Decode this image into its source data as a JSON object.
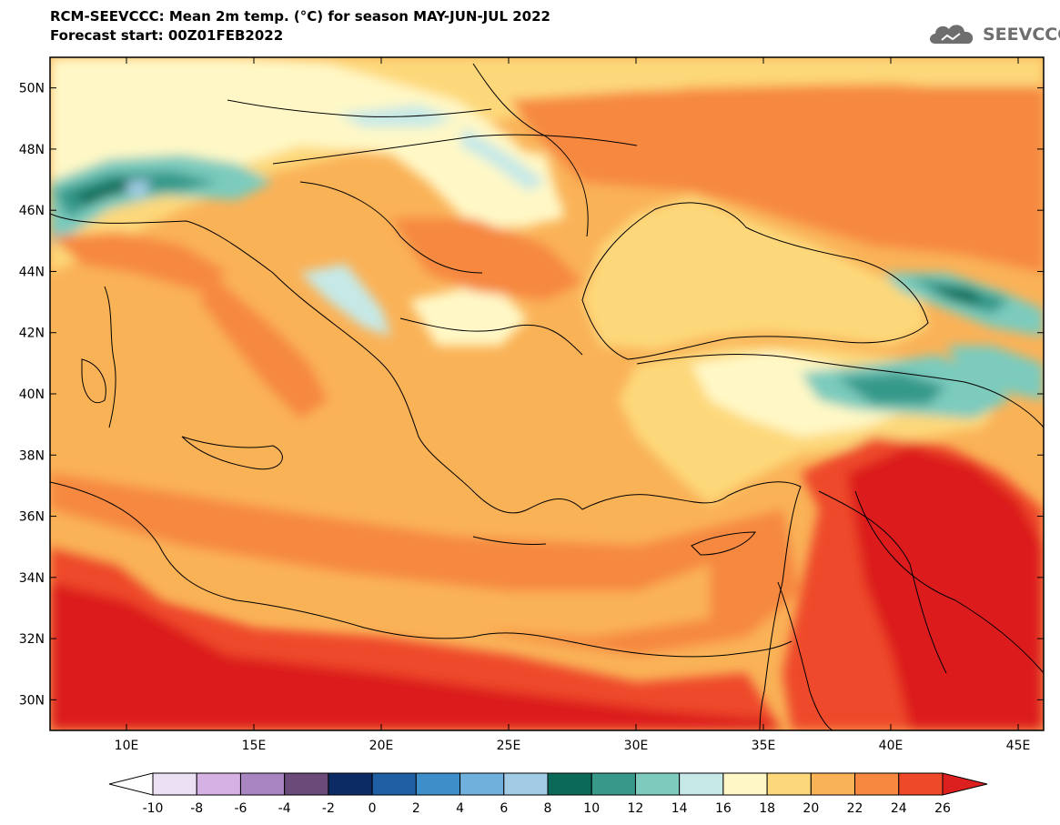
{
  "title": {
    "line1": "RCM-SEEVCCC: Mean 2m temp. (°C) for season MAY-JUN-JUL 2022",
    "line2": "Forecast start: 00Z01FEB2022"
  },
  "logo": {
    "text": "SEEVCCC",
    "icon": "cloud-icon"
  },
  "map": {
    "lon_range": [
      7,
      46
    ],
    "lat_range": [
      29,
      51
    ],
    "lat_ticks": [
      "50N",
      "48N",
      "46N",
      "44N",
      "42N",
      "40N",
      "38N",
      "36N",
      "34N",
      "32N",
      "30N"
    ],
    "lon_ticks": [
      "10E",
      "15E",
      "20E",
      "25E",
      "30E",
      "35E",
      "40E",
      "45E"
    ]
  },
  "colorbar": {
    "labels": [
      "-10",
      "-8",
      "-6",
      "-4",
      "-2",
      "0",
      "2",
      "4",
      "6",
      "8",
      "10",
      "12",
      "14",
      "16",
      "18",
      "20",
      "22",
      "24",
      "26"
    ],
    "colors": [
      "#ffffff",
      "#ece0f4",
      "#d6b2e4",
      "#a884c0",
      "#6a4a78",
      "#0c2a63",
      "#1f5fa3",
      "#3d8ec9",
      "#6fb0dd",
      "#a2cbe6",
      "#0b6a57",
      "#36998a",
      "#7ccbbd",
      "#c6e9e7",
      "#fff8c6",
      "#fdd87a",
      "#fab257",
      "#f68840",
      "#ee4a2a",
      "#dc1f1f"
    ]
  }
}
